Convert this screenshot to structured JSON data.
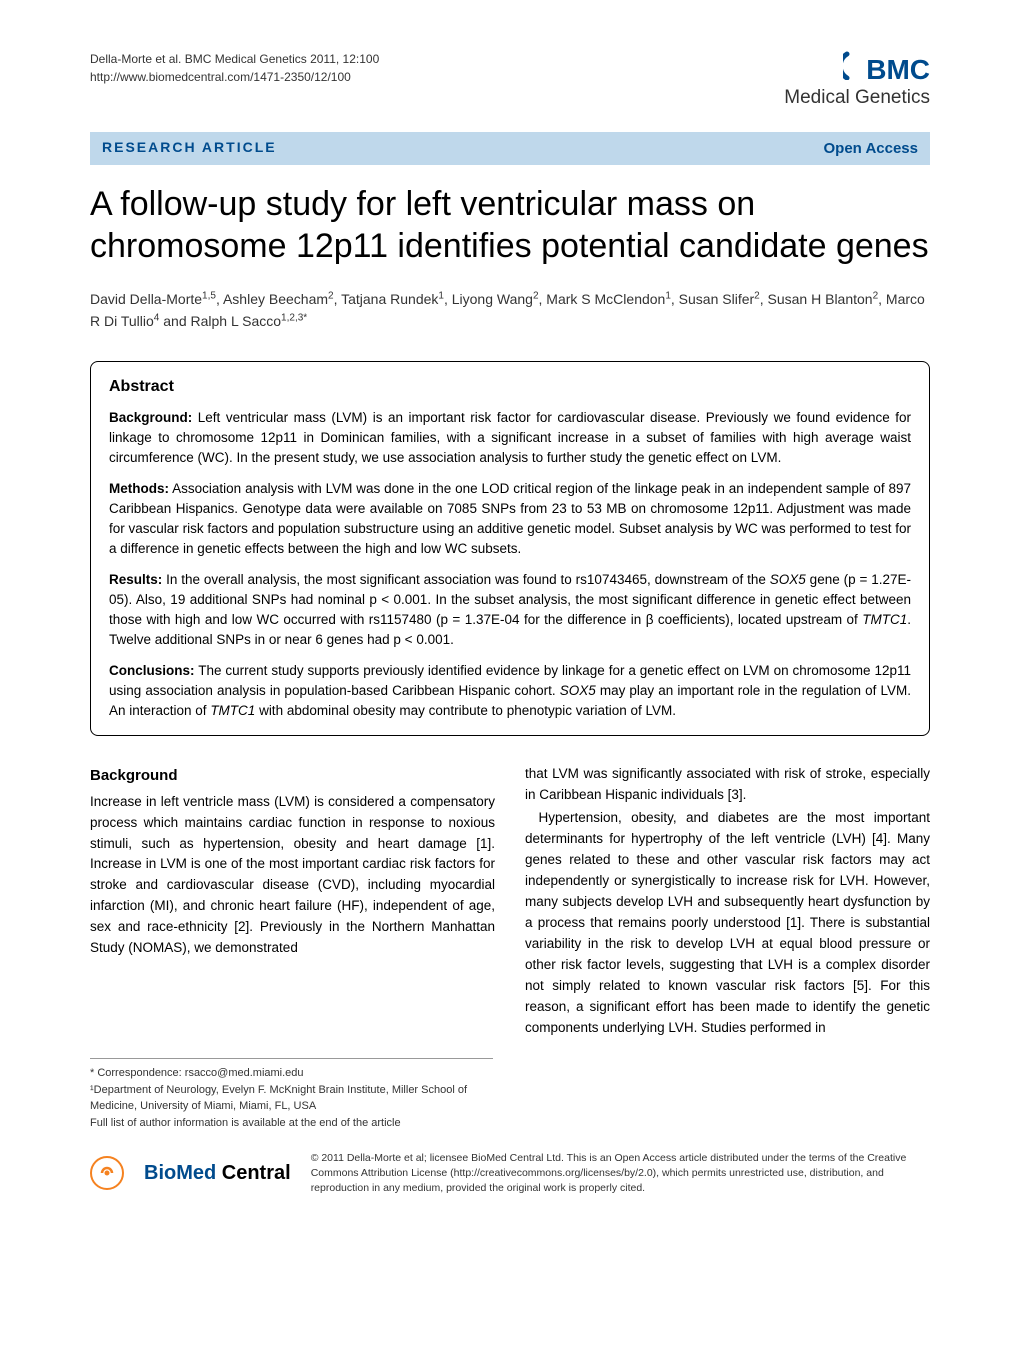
{
  "header": {
    "citation_line1": "Della-Morte et al. BMC Medical Genetics 2011, 12:100",
    "citation_line2": "http://www.biomedcentral.com/1471-2350/12/100",
    "logo_bmc": "BMC",
    "journal_name": "Medical Genetics"
  },
  "article_bar": {
    "type": "RESEARCH ARTICLE",
    "access": "Open Access"
  },
  "title": "A follow-up study for left ventricular mass on chromosome 12p11 identifies potential candidate genes",
  "authors_html": "David Della-Morte<sup>1,5</sup>, Ashley Beecham<sup>2</sup>, Tatjana Rundek<sup>1</sup>, Liyong Wang<sup>2</sup>, Mark S McClendon<sup>1</sup>, Susan Slifer<sup>2</sup>, Susan H Blanton<sup>2</sup>, Marco R Di Tullio<sup>4</sup> and Ralph L Sacco<sup>1,2,3*</sup>",
  "abstract": {
    "heading": "Abstract",
    "background_label": "Background:",
    "background_text": " Left ventricular mass (LVM) is an important risk factor for cardiovascular disease. Previously we found evidence for linkage to chromosome 12p11 in Dominican families, with a significant increase in a subset of families with high average waist circumference (WC). In the present study, we use association analysis to further study the genetic effect on LVM.",
    "methods_label": "Methods:",
    "methods_text": " Association analysis with LVM was done in the one LOD critical region of the linkage peak in an independent sample of 897 Caribbean Hispanics. Genotype data were available on 7085 SNPs from 23 to 53 MB on chromosome 12p11. Adjustment was made for vascular risk factors and population substructure using an additive genetic model. Subset analysis by WC was performed to test for a difference in genetic effects between the high and low WC subsets.",
    "results_label": "Results:",
    "results_text_1": " In the overall analysis, the most significant association was found to rs10743465, downstream of the ",
    "results_gene1": "SOX5",
    "results_text_2": " gene (p = 1.27E-05). Also, 19 additional SNPs had nominal p < 0.001. In the subset analysis, the most significant difference in genetic effect between those with high and low WC occurred with rs1157480 (p = 1.37E-04 for the difference in β coefficients), located upstream of ",
    "results_gene2": "TMTC1",
    "results_text_3": ". Twelve additional SNPs in or near 6 genes had p < 0.001.",
    "conclusions_label": "Conclusions:",
    "conclusions_text_1": " The current study supports previously identified evidence by linkage for a genetic effect on LVM on chromosome 12p11 using association analysis in population-based Caribbean Hispanic cohort. ",
    "conclusions_gene1": "SOX5",
    "conclusions_text_2": " may play an important role in the regulation of LVM. An interaction of ",
    "conclusions_gene2": "TMTC1",
    "conclusions_text_3": " with abdominal obesity may contribute to phenotypic variation of LVM."
  },
  "body": {
    "background_heading": "Background",
    "col1_text": "Increase in left ventricle mass (LVM) is considered a compensatory process which maintains cardiac function in response to noxious stimuli, such as hypertension, obesity and heart damage [1]. Increase in LVM is one of the most important cardiac risk factors for stroke and cardiovascular disease (CVD), including myocardial infarction (MI), and chronic heart failure (HF), independent of age, sex and race-ethnicity [2]. Previously in the Northern Manhattan Study (NOMAS), we demonstrated",
    "col2_para1": "that LVM was significantly associated with risk of stroke, especially in Caribbean Hispanic individuals [3].",
    "col2_para2": "Hypertension, obesity, and diabetes are the most important determinants for hypertrophy of the left ventricle (LVH) [4]. Many genes related to these and other vascular risk factors may act independently or synergistically to increase risk for LVH. However, many subjects develop LVH and subsequently heart dysfunction by a process that remains poorly understood [1]. There is substantial variability in the risk to develop LVH at equal blood pressure or other risk factor levels, suggesting that LVH is a complex disorder not simply related to known vascular risk factors [5]. For this reason, a significant effort has been made to identify the genetic components underlying LVH. Studies performed in"
  },
  "footnotes": {
    "correspondence": "* Correspondence: rsacco@med.miami.edu",
    "affiliation": "¹Department of Neurology, Evelyn F. McKnight Brain Institute, Miller School of Medicine, University of Miami, Miami, FL, USA",
    "author_info": "Full list of author information is available at the end of the article"
  },
  "footer": {
    "biomed_bio": "BioMed",
    "biomed_central": " Central",
    "license": "© 2011 Della-Morte et al; licensee BioMed Central Ltd. This is an Open Access article distributed under the terms of the Creative Commons Attribution License (http://creativecommons.org/licenses/by/2.0), which permits unrestricted use, distribution, and reproduction in any medium, provided the original work is properly cited."
  },
  "colors": {
    "brand_blue": "#004b8d",
    "bar_bg": "#bfd8eb",
    "oa_orange": "#f58220"
  }
}
